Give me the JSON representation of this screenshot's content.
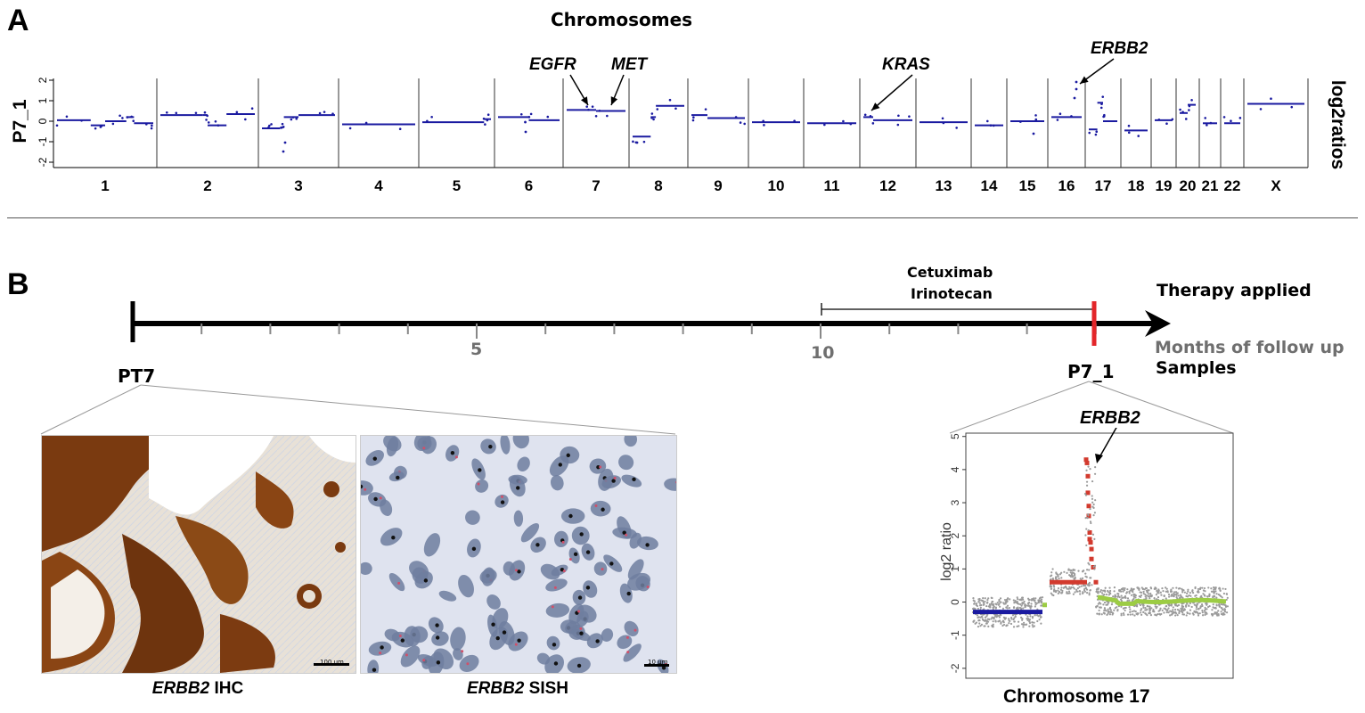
{
  "panel_a": {
    "letter": "A",
    "title": "Chromosomes",
    "ylabel_left": "P7_1",
    "ylabel_right": "log2ratios",
    "yticks": [
      "2",
      "1",
      "0",
      "-1",
      "-2"
    ],
    "chromosomes": [
      "1",
      "2",
      "3",
      "4",
      "5",
      "6",
      "7",
      "8",
      "9",
      "10",
      "11",
      "12",
      "13",
      "14",
      "15",
      "16",
      "17",
      "18",
      "19",
      "20",
      "21",
      "22",
      "X"
    ],
    "genes": [
      {
        "name": "EGFR",
        "chromosome": "7"
      },
      {
        "name": "MET",
        "chromosome": "7"
      },
      {
        "name": "KRAS",
        "chromosome": "12"
      },
      {
        "name": "ERBB2",
        "chromosome": "17"
      }
    ]
  },
  "panel_b": {
    "letter": "B",
    "therapy_drug_1": "Cetuximab",
    "therapy_drug_2": "Irinotecan",
    "therapy_label": "Therapy applied",
    "axis_label": "Months of follow up",
    "samples_label": "Samples",
    "tick_labels": [
      "5",
      "10"
    ],
    "sample_left": "PT7",
    "sample_right": "P7_1",
    "image_left_caption_gene": "ERBB2",
    "image_left_caption_method": "IHC",
    "image_right_caption_gene": "ERBB2",
    "image_right_caption_method": "SISH",
    "scalebar_left": "100 µm",
    "scalebar_right": "10 µm",
    "inset": {
      "gene": "ERBB2",
      "ylabel": "log2 ratio",
      "xlabel": "Chromosome 17",
      "yticks": [
        "5",
        "4",
        "3",
        "2",
        "1",
        "0",
        "-1",
        "-2"
      ]
    }
  },
  "chart_data": {
    "type": "scatter",
    "ylabel": "log2 ratio",
    "xlabel": "Chromosome 17",
    "ylim": [
      -2.3,
      5.1
    ],
    "segments": [
      {
        "color": "#1a1aa0",
        "level": -0.3
      },
      {
        "color": "#d23a2e",
        "level": 0.6
      },
      {
        "color": "#9ccc44",
        "level": 0.05
      }
    ],
    "peak": {
      "gene": "ERBB2",
      "max_log2": 4.3
    }
  }
}
